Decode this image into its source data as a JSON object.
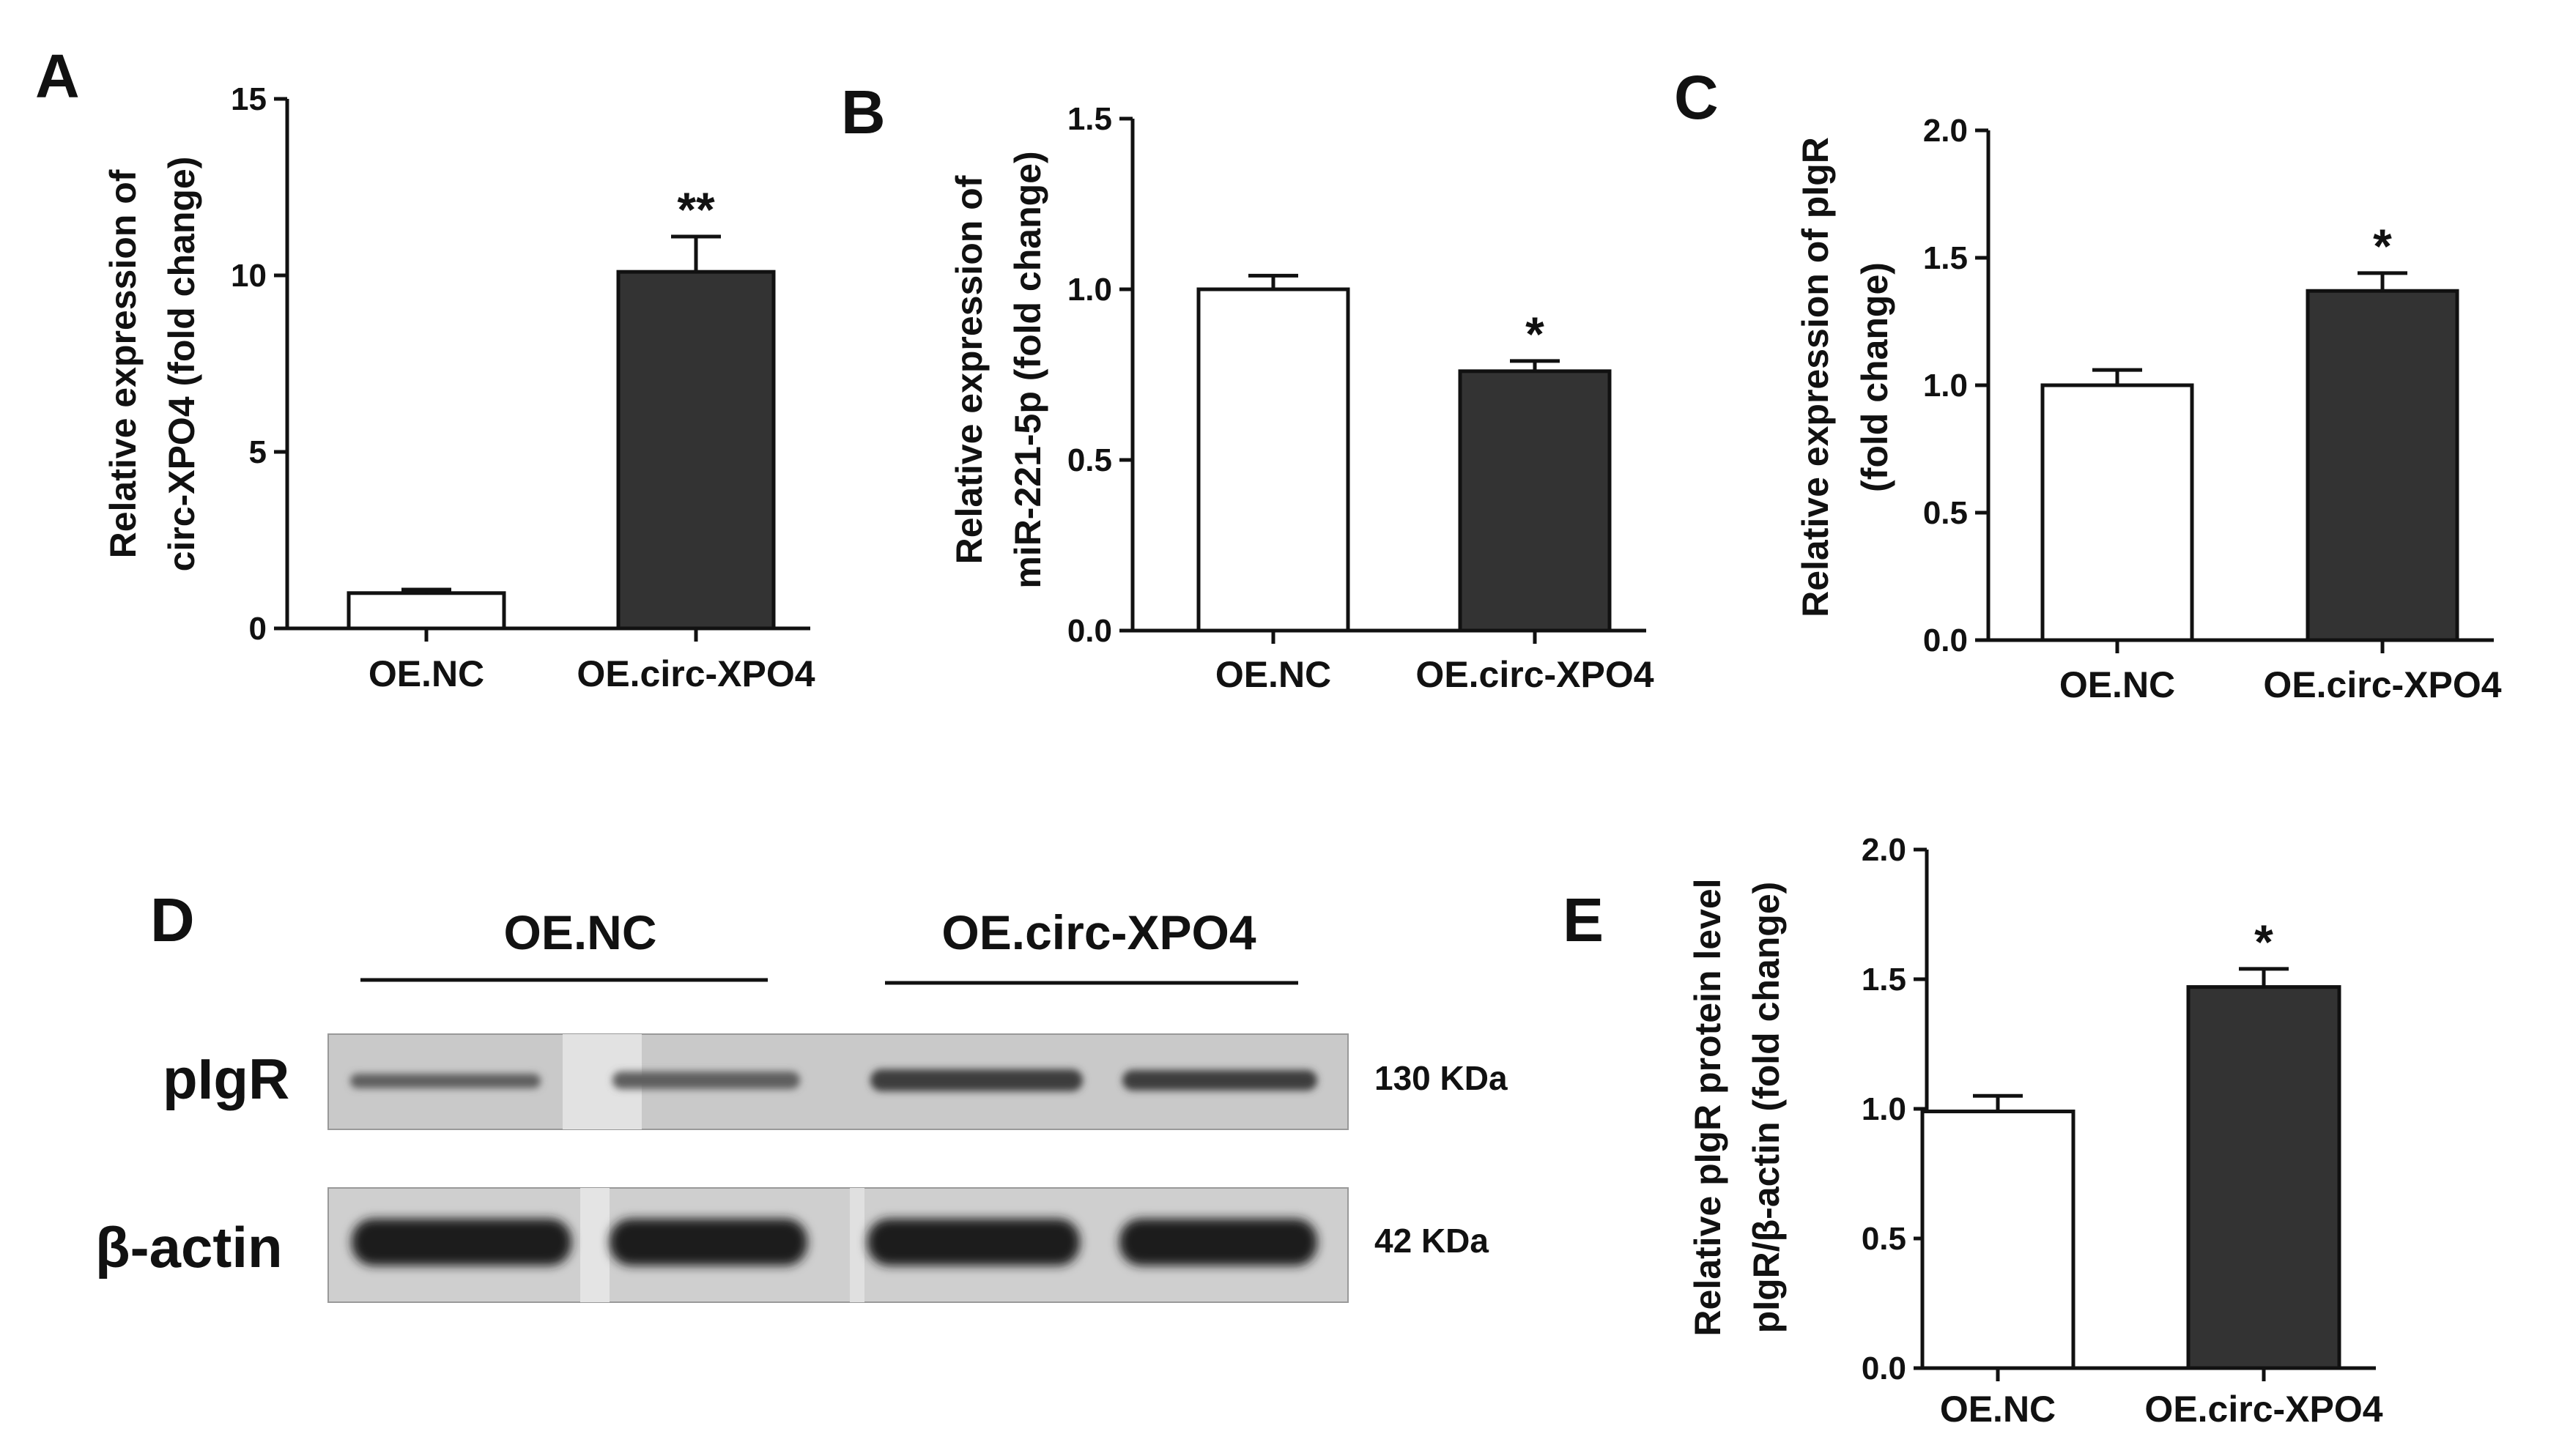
{
  "chart_data": [
    {
      "panel": "A",
      "type": "bar",
      "categories": [
        "OE.NC",
        "OE.circ-XPO4"
      ],
      "values": [
        1.0,
        10.1
      ],
      "errors": [
        0.1,
        1.0
      ],
      "significance": [
        "",
        "**"
      ],
      "ylabel": [
        "Relative expression of",
        "circ-XPO4 (fold change)"
      ],
      "ylim": [
        0,
        15
      ],
      "yticks": [
        0,
        5,
        10,
        15
      ],
      "bar_colors": [
        "#ffffff",
        "#333333"
      ]
    },
    {
      "panel": "B",
      "type": "bar",
      "categories": [
        "OE.NC",
        "OE.circ-XPO4"
      ],
      "values": [
        1.0,
        0.76
      ],
      "errors": [
        0.04,
        0.03
      ],
      "significance": [
        "",
        "*"
      ],
      "ylabel": [
        "Relative expression of",
        "miR-221-5p (fold change)"
      ],
      "ylim": [
        0,
        1.5
      ],
      "yticks": [
        "0.0",
        "0.5",
        "1.0",
        "1.5"
      ],
      "bar_colors": [
        "#ffffff",
        "#333333"
      ]
    },
    {
      "panel": "C",
      "type": "bar",
      "categories": [
        "OE.NC",
        "OE.circ-XPO4"
      ],
      "values": [
        1.0,
        1.37
      ],
      "errors": [
        0.06,
        0.07
      ],
      "significance": [
        "",
        "*"
      ],
      "ylabel": [
        "Relative expression of pIgR",
        "(fold change)"
      ],
      "ylim": [
        0,
        2.0
      ],
      "yticks": [
        "0.0",
        "0.5",
        "1.0",
        "1.5",
        "2.0"
      ],
      "bar_colors": [
        "#ffffff",
        "#333333"
      ]
    },
    {
      "panel": "E",
      "type": "bar",
      "categories": [
        "OE.NC",
        "OE.circ-XPO4"
      ],
      "values": [
        0.99,
        1.47
      ],
      "errors": [
        0.06,
        0.07
      ],
      "significance": [
        "",
        "*"
      ],
      "ylabel": [
        "Relative pIgR protein level",
        "pIgR/β-actin (fold change)"
      ],
      "ylim": [
        0,
        2.0
      ],
      "yticks": [
        "0.0",
        "0.5",
        "1.0",
        "1.5",
        "2.0"
      ],
      "bar_colors": [
        "#ffffff",
        "#333333"
      ]
    }
  ],
  "blot": {
    "panel": "D",
    "groups": [
      "OE.NC",
      "OE.circ-XPO4"
    ],
    "rows": [
      {
        "label": "pIgR",
        "size": "130 KDa"
      },
      {
        "label": "β-actin",
        "size": "42 KDa"
      }
    ]
  }
}
